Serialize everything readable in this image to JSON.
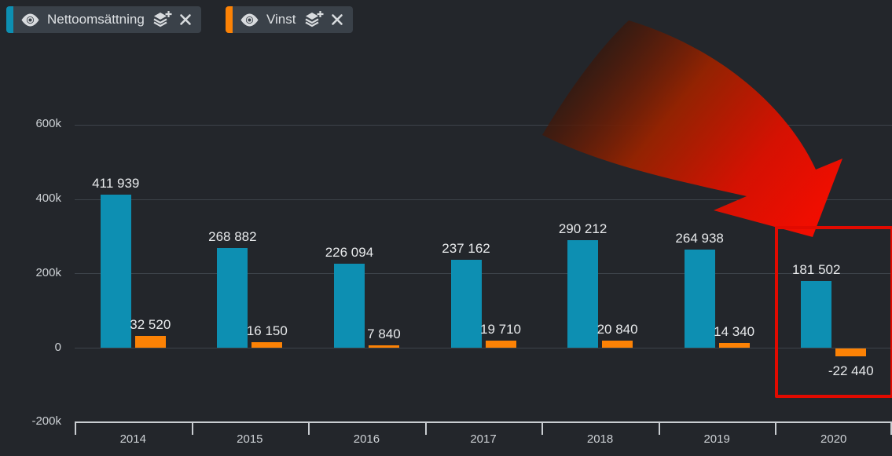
{
  "legend": {
    "series": [
      {
        "label": "Nettoomsättning",
        "accent_color": "#0d8fb2",
        "icons": [
          "eye-icon",
          "layers-plus-icon",
          "close-icon"
        ]
      },
      {
        "label": "Vinst",
        "accent_color": "#fc8205",
        "icons": [
          "eye-icon",
          "layers-plus-icon",
          "close-icon"
        ]
      }
    ]
  },
  "chart_data": {
    "type": "bar",
    "title": "",
    "xlabel": "",
    "ylabel": "",
    "categories": [
      "2014",
      "2015",
      "2016",
      "2017",
      "2018",
      "2019",
      "2020"
    ],
    "series": [
      {
        "name": "Nettoomsättning",
        "color": "#0d8fb2",
        "values": [
          411939,
          268882,
          226094,
          237162,
          290212,
          264938,
          181502
        ],
        "display_values": [
          "411 939",
          "268 882",
          "226 094",
          "237 162",
          "290 212",
          "264 938",
          "181 502"
        ]
      },
      {
        "name": "Vinst",
        "color": "#fc8205",
        "values": [
          32520,
          16150,
          7840,
          19710,
          20840,
          14340,
          -22440
        ],
        "display_values": [
          "32 520",
          "16 150",
          "7 840",
          "19 710",
          "20 840",
          "14 340",
          "-22 440"
        ]
      }
    ],
    "yticks": [
      {
        "label": "600k",
        "value": 600000
      },
      {
        "label": "400k",
        "value": 400000
      },
      {
        "label": "200k",
        "value": 200000
      },
      {
        "label": "0",
        "value": 0
      },
      {
        "label": "-200k",
        "value": -200000
      }
    ],
    "ylim": [
      -200000,
      650000
    ],
    "grid": true,
    "legend_position": "top-left",
    "annotations": {
      "highlight_box": {
        "category": "2020",
        "color": "#e20a00"
      },
      "decline_arrow": {
        "points_to": "2020",
        "color_tail": "#3a1a0e",
        "color_head": "#f20d00"
      }
    }
  },
  "colors": {
    "background": "#23262b",
    "grid": "#3d434a",
    "axis": "#c9cdd1",
    "text": "#e8eaec",
    "chip_bg": "#3a4149"
  }
}
